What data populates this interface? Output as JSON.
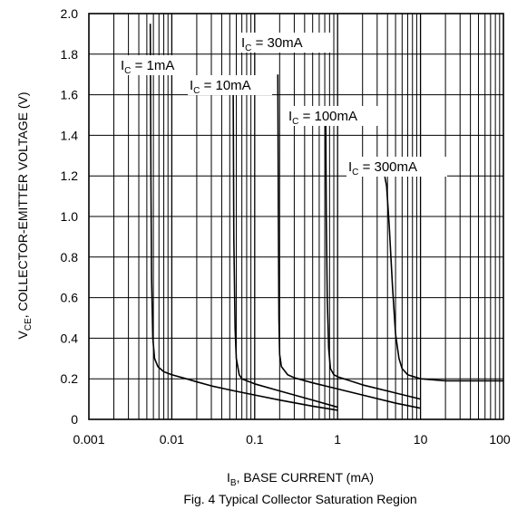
{
  "chart_data": {
    "type": "line",
    "title": "",
    "caption": "Fig. 4  Typical Collector Saturation Region",
    "xlabel": {
      "main": "I",
      "sub": "B",
      "rest": ", BASE CURRENT (mA)"
    },
    "ylabel": {
      "main": "V",
      "sub": "CE",
      "rest": ", COLLECTOR-EMITTER VOLTAGE (V)"
    },
    "x_scale": "log",
    "xlim": [
      0.001,
      100
    ],
    "ylim": [
      0,
      2.0
    ],
    "x_ticks": [
      0.001,
      0.01,
      0.1,
      1,
      10,
      100
    ],
    "x_tick_labels": [
      "0.001",
      "0.01",
      "0.1",
      "1",
      "10",
      "100"
    ],
    "y_ticks": [
      0,
      0.2,
      0.4,
      0.6,
      0.8,
      1.0,
      1.2,
      1.4,
      1.6,
      1.8,
      2.0
    ],
    "y_tick_labels": [
      "0",
      "0.2",
      "0.4",
      "0.6",
      "0.8",
      "1.0",
      "1.2",
      "1.4",
      "1.6",
      "1.8",
      "2.0"
    ],
    "grid": true,
    "series": [
      {
        "name": "IC = 1mA",
        "label": {
          "main": "I",
          "sub": "C",
          "rest": " = 1mA"
        },
        "x": [
          0.0055,
          0.0056,
          0.0057,
          0.0059,
          0.0062,
          0.0068,
          0.008,
          0.01,
          0.015,
          0.02,
          0.03,
          0.05,
          0.1,
          0.2,
          0.5,
          1.0
        ],
        "y": [
          1.95,
          1.2,
          0.7,
          0.4,
          0.3,
          0.26,
          0.235,
          0.22,
          0.2,
          0.185,
          0.165,
          0.145,
          0.12,
          0.095,
          0.065,
          0.045
        ]
      },
      {
        "name": "IC = 10mA",
        "label": {
          "main": "I",
          "sub": "C",
          "rest": " = 10mA"
        },
        "x": [
          0.055,
          0.056,
          0.058,
          0.06,
          0.065,
          0.07,
          0.1,
          0.2,
          0.5,
          1.0
        ],
        "y": [
          1.65,
          0.9,
          0.45,
          0.3,
          0.22,
          0.2,
          0.175,
          0.14,
          0.095,
          0.06
        ]
      },
      {
        "name": "IC = 30mA",
        "label": {
          "main": "I",
          "sub": "C",
          "rest": " = 30mA"
        },
        "x": [
          0.19,
          0.193,
          0.196,
          0.2,
          0.21,
          0.25,
          0.3,
          0.5,
          1.0,
          2.0,
          5.0,
          10.0
        ],
        "y": [
          1.7,
          1.0,
          0.5,
          0.32,
          0.26,
          0.22,
          0.205,
          0.18,
          0.15,
          0.12,
          0.08,
          0.055
        ]
      },
      {
        "name": "IC = 100mA",
        "label": {
          "main": "I",
          "sub": "C",
          "rest": " = 100mA"
        },
        "x": [
          0.72,
          0.73,
          0.75,
          0.78,
          0.82,
          0.9,
          1.0,
          2.0,
          5.0,
          10.0
        ],
        "y": [
          1.45,
          1.0,
          0.6,
          0.35,
          0.25,
          0.22,
          0.21,
          0.17,
          0.13,
          0.1
        ]
      },
      {
        "name": "IC = 300mA",
        "label": {
          "main": "I",
          "sub": "C",
          "rest": " = 300mA"
        },
        "x": [
          3.7,
          3.9,
          4.2,
          4.6,
          5.0,
          5.5,
          6.0,
          7.0,
          10.0,
          20.0,
          50.0,
          100.0
        ],
        "y": [
          1.2,
          1.15,
          0.95,
          0.65,
          0.42,
          0.3,
          0.25,
          0.22,
          0.2,
          0.19,
          0.19,
          0.19
        ]
      }
    ]
  }
}
